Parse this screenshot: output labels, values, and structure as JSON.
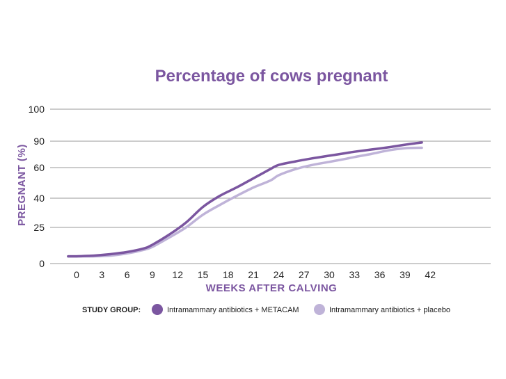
{
  "chart_data": {
    "type": "line",
    "title": "Percentage of cows pregnant",
    "xlabel": "WEEKS AFTER CALVING",
    "ylabel": "PREGNANT (%)",
    "x_ticks": [
      0,
      3,
      6,
      9,
      12,
      15,
      18,
      21,
      24,
      27,
      30,
      33,
      36,
      39,
      42
    ],
    "y_ticks": [
      0,
      25,
      40,
      60,
      90,
      100
    ],
    "xlim": [
      -1,
      42
    ],
    "grid": true,
    "legend_position": "bottom",
    "legend_title": "STUDY GROUP:",
    "series": [
      {
        "name": "Intramammary antibiotics + METACAM",
        "color": "#7B56A0",
        "x": [
          -1,
          0,
          2,
          4,
          6,
          8,
          9,
          11,
          13,
          15,
          17,
          19,
          21,
          23,
          24,
          26,
          28,
          30,
          32,
          33,
          35,
          37,
          39,
          41
        ],
        "y": [
          5,
          5,
          5.5,
          6.5,
          8,
          10.5,
          13,
          20,
          27.5,
          35.5,
          41.5,
          47,
          53,
          59,
          63,
          67,
          70.5,
          73.5,
          76.5,
          78,
          80.5,
          83,
          86,
          88.5
        ]
      },
      {
        "name": "Intramammary antibiotics + placebo",
        "color": "#BFB3D8",
        "x": [
          -1,
          0,
          2,
          4,
          6,
          8,
          9,
          11,
          13,
          15,
          17,
          19,
          21,
          23,
          24,
          26,
          28,
          30,
          32,
          33,
          35,
          37,
          39,
          41
        ],
        "y": [
          5,
          5,
          5,
          5.5,
          7,
          9.5,
          11.5,
          18,
          25,
          31.5,
          36.5,
          41.5,
          47,
          51.5,
          55,
          59,
          63,
          66.5,
          70,
          72,
          75.5,
          79.5,
          82,
          82.5
        ]
      }
    ]
  }
}
